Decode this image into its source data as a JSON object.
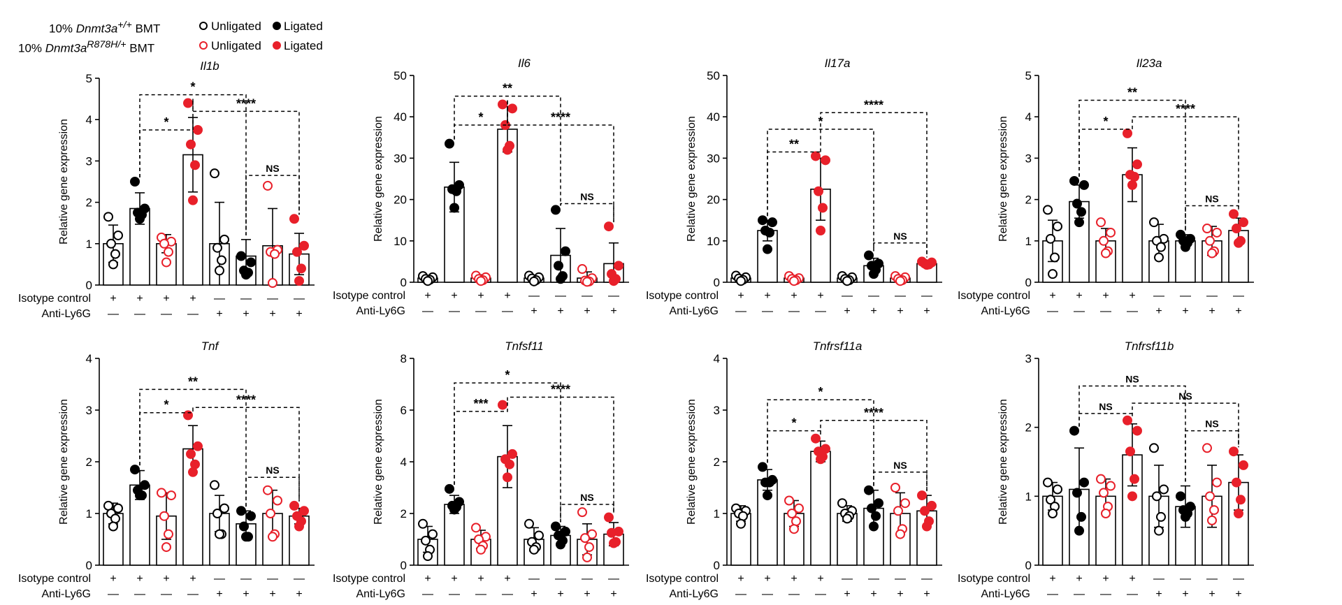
{
  "legend": {
    "rows": [
      {
        "prefix": "10% ",
        "gene": "Dnmt3a",
        "sup": "+/+",
        "suffix": " BMT",
        "color": "#000000",
        "unligated_label": "Unligated",
        "ligated_label": "Ligated"
      },
      {
        "prefix": "10% ",
        "gene": "Dnmt3a",
        "sup": "R878H/+",
        "suffix": " BMT",
        "color": "#e8202a",
        "unligated_label": "Unligated",
        "ligated_label": "Ligated"
      }
    ]
  },
  "treatment_rows": {
    "isotype_label": "Isotype control",
    "antily6g_label": "Anti-Ly6G",
    "isotype_signs": [
      "+",
      "+",
      "+",
      "+",
      "—",
      "—",
      "—",
      "—"
    ],
    "antily6g_signs": [
      "—",
      "—",
      "—",
      "—",
      "+",
      "+",
      "+",
      "+"
    ]
  },
  "colors": {
    "black": "#000000",
    "red": "#e8202a"
  },
  "chart_data": [
    {
      "type": "bar",
      "title": "Il1b",
      "ylabel": "Relative gene expression",
      "ylim": [
        0,
        5
      ],
      "yticks": [
        0,
        1,
        2,
        3,
        4,
        5
      ],
      "groups": [
        "Isotype control",
        "Isotype control",
        "Isotype control",
        "Isotype control",
        "Anti-Ly6G",
        "Anti-Ly6G",
        "Anti-Ly6G",
        "Anti-Ly6G"
      ],
      "series_colors": [
        "black",
        "black",
        "red",
        "red",
        "black",
        "black",
        "red",
        "red"
      ],
      "filled": [
        false,
        true,
        false,
        true,
        false,
        true,
        false,
        true
      ],
      "means": [
        1.0,
        1.85,
        1.0,
        3.15,
        1.0,
        0.7,
        0.95,
        0.75
      ],
      "errors": [
        0.45,
        0.38,
        0.22,
        0.9,
        1.0,
        0.4,
        0.9,
        0.5
      ],
      "points": [
        [
          1.65,
          1.2,
          1.0,
          0.75,
          0.5
        ],
        [
          2.5,
          1.85,
          1.75,
          1.7,
          1.6
        ],
        [
          1.15,
          1.05,
          1.0,
          0.8,
          0.55
        ],
        [
          4.4,
          3.75,
          3.4,
          2.9,
          2.05
        ],
        [
          2.7,
          1.1,
          0.9,
          0.6,
          0.35
        ],
        [
          0.7,
          0.55,
          0.35,
          0.3,
          0.25
        ],
        [
          2.4,
          0.85,
          0.8,
          0.75,
          0.05
        ],
        [
          1.6,
          0.95,
          0.8,
          0.4,
          0.1
        ]
      ],
      "comparisons": [
        {
          "from": 1,
          "to": 3,
          "y": 3.75,
          "label": "*"
        },
        {
          "from": 1,
          "to": 5,
          "y": 4.6,
          "label": "*"
        },
        {
          "from": 3,
          "to": 7,
          "y": 4.2,
          "label": "****"
        },
        {
          "from": 5,
          "to": 7,
          "y": 2.65,
          "label": "NS"
        }
      ]
    },
    {
      "type": "bar",
      "title": "Il6",
      "ylabel": "Relative gene expression",
      "ylim": [
        0,
        50
      ],
      "yticks": [
        0,
        10,
        20,
        30,
        40,
        50
      ],
      "groups": [
        "Isotype control",
        "Isotype control",
        "Isotype control",
        "Isotype control",
        "Anti-Ly6G",
        "Anti-Ly6G",
        "Anti-Ly6G",
        "Anti-Ly6G"
      ],
      "series_colors": [
        "black",
        "black",
        "red",
        "red",
        "black",
        "black",
        "red",
        "red"
      ],
      "filled": [
        false,
        true,
        false,
        true,
        false,
        true,
        false,
        true
      ],
      "means": [
        1.0,
        23.0,
        1.0,
        37.0,
        1.0,
        6.5,
        1.0,
        4.5
      ],
      "errors": [
        0.6,
        6.0,
        0.8,
        5.5,
        0.6,
        6.5,
        1.5,
        5.0
      ],
      "points": [
        [
          1.5,
          1.2,
          0.8,
          0.6,
          0.3
        ],
        [
          33.5,
          23.5,
          22.5,
          22.0,
          18.0
        ],
        [
          1.6,
          1.2,
          0.8,
          0.5,
          0.3
        ],
        [
          43.0,
          42.0,
          38.0,
          33.0,
          32.0
        ],
        [
          1.6,
          1.2,
          0.9,
          0.5,
          0.2
        ],
        [
          17.5,
          7.5,
          4.0,
          1.5,
          0.8
        ],
        [
          3.2,
          1.0,
          0.4,
          0.2,
          0.1
        ],
        [
          13.5,
          4.0,
          2.0,
          0.8,
          0.3
        ]
      ],
      "comparisons": [
        {
          "from": 1,
          "to": 3,
          "y": 38.0,
          "label": "*"
        },
        {
          "from": 1,
          "to": 5,
          "y": 45.0,
          "label": "**"
        },
        {
          "from": 3,
          "to": 7,
          "y": 38.0,
          "label": "****"
        },
        {
          "from": 5,
          "to": 7,
          "y": 19.0,
          "label": "NS"
        }
      ]
    },
    {
      "type": "bar",
      "title": "Il17a",
      "ylabel": "Relative gene expression",
      "ylim": [
        0,
        50
      ],
      "yticks": [
        0,
        10,
        20,
        30,
        40,
        50
      ],
      "groups": [
        "Isotype control",
        "Isotype control",
        "Isotype control",
        "Isotype control",
        "Anti-Ly6G",
        "Anti-Ly6G",
        "Anti-Ly6G",
        "Anti-Ly6G"
      ],
      "series_colors": [
        "black",
        "black",
        "red",
        "red",
        "black",
        "black",
        "red",
        "red"
      ],
      "filled": [
        false,
        true,
        false,
        true,
        false,
        true,
        false,
        true
      ],
      "means": [
        1.0,
        12.5,
        1.0,
        22.5,
        1.0,
        4.0,
        1.0,
        4.5
      ],
      "errors": [
        0.5,
        2.5,
        0.6,
        7.5,
        0.6,
        1.8,
        0.6,
        0.5
      ],
      "points": [
        [
          1.6,
          1.2,
          0.9,
          0.6,
          0.3
        ],
        [
          15.0,
          14.5,
          12.5,
          12.0,
          8.0
        ],
        [
          1.5,
          1.0,
          0.8,
          0.5,
          0.3
        ],
        [
          30.5,
          29.5,
          22.0,
          18.0,
          12.5
        ],
        [
          1.5,
          1.2,
          0.8,
          0.5,
          0.3
        ],
        [
          6.5,
          4.5,
          4.0,
          3.0,
          2.0
        ],
        [
          1.5,
          1.2,
          0.8,
          0.5,
          0.3
        ],
        [
          5.0,
          4.8,
          4.5,
          4.3,
          4.2
        ]
      ],
      "comparisons": [
        {
          "from": 1,
          "to": 3,
          "y": 31.5,
          "label": "**"
        },
        {
          "from": 1,
          "to": 5,
          "y": 37.0,
          "label": "*"
        },
        {
          "from": 3,
          "to": 7,
          "y": 41.0,
          "label": "****"
        },
        {
          "from": 5,
          "to": 7,
          "y": 9.5,
          "label": "NS"
        }
      ]
    },
    {
      "type": "bar",
      "title": "Il23a",
      "ylabel": "Relative gene expression",
      "ylim": [
        0,
        5
      ],
      "yticks": [
        0,
        1,
        2,
        3,
        4,
        5
      ],
      "groups": [
        "Isotype control",
        "Isotype control",
        "Isotype control",
        "Isotype control",
        "Anti-Ly6G",
        "Anti-Ly6G",
        "Anti-Ly6G",
        "Anti-Ly6G"
      ],
      "series_colors": [
        "black",
        "black",
        "red",
        "red",
        "black",
        "black",
        "red",
        "red"
      ],
      "filled": [
        false,
        true,
        false,
        true,
        false,
        true,
        false,
        true
      ],
      "means": [
        1.0,
        1.95,
        1.0,
        2.6,
        1.0,
        1.0,
        1.0,
        1.25
      ],
      "errors": [
        0.5,
        0.4,
        0.3,
        0.65,
        0.4,
        0.15,
        0.35,
        0.3
      ],
      "points": [
        [
          1.75,
          1.35,
          1.05,
          0.6,
          0.2
        ],
        [
          2.45,
          2.35,
          1.9,
          1.7,
          1.45
        ],
        [
          1.45,
          1.2,
          1.0,
          0.75,
          0.7
        ],
        [
          3.6,
          2.85,
          2.6,
          2.55,
          2.35
        ],
        [
          1.45,
          1.05,
          1.0,
          0.85,
          0.6
        ],
        [
          1.15,
          1.05,
          1.0,
          0.95,
          0.85
        ],
        [
          1.3,
          1.2,
          1.0,
          0.75,
          0.7
        ],
        [
          1.65,
          1.45,
          1.3,
          1.0,
          0.95
        ]
      ],
      "comparisons": [
        {
          "from": 1,
          "to": 3,
          "y": 3.7,
          "label": "*"
        },
        {
          "from": 1,
          "to": 5,
          "y": 4.4,
          "label": "**"
        },
        {
          "from": 3,
          "to": 7,
          "y": 4.0,
          "label": "****"
        },
        {
          "from": 5,
          "to": 7,
          "y": 1.85,
          "label": "NS"
        }
      ]
    },
    {
      "type": "bar",
      "title": "Tnf",
      "ylabel": "Relative gene expression",
      "ylim": [
        0,
        4
      ],
      "yticks": [
        0,
        1,
        2,
        3,
        4
      ],
      "groups": [
        "Isotype control",
        "Isotype control",
        "Isotype control",
        "Isotype control",
        "Anti-Ly6G",
        "Anti-Ly6G",
        "Anti-Ly6G",
        "Anti-Ly6G"
      ],
      "series_colors": [
        "black",
        "black",
        "red",
        "red",
        "black",
        "black",
        "red",
        "red"
      ],
      "filled": [
        false,
        true,
        false,
        true,
        false,
        true,
        false,
        true
      ],
      "means": [
        1.0,
        1.55,
        0.95,
        2.25,
        1.0,
        0.8,
        1.0,
        0.95
      ],
      "errors": [
        0.2,
        0.28,
        0.45,
        0.45,
        0.35,
        0.25,
        0.45,
        0.15
      ],
      "points": [
        [
          1.15,
          1.1,
          1.0,
          0.9,
          0.75
        ],
        [
          1.85,
          1.55,
          1.45,
          1.35,
          1.35
        ],
        [
          1.4,
          1.35,
          0.95,
          0.6,
          0.35
        ],
        [
          2.9,
          2.3,
          2.15,
          1.95,
          1.8
        ],
        [
          1.55,
          1.1,
          1.0,
          0.6,
          0.6
        ],
        [
          1.05,
          0.95,
          0.75,
          0.55,
          0.55
        ],
        [
          1.45,
          1.25,
          1.0,
          0.6,
          0.55
        ],
        [
          1.15,
          1.05,
          0.95,
          0.85,
          0.75
        ]
      ],
      "comparisons": [
        {
          "from": 1,
          "to": 3,
          "y": 2.95,
          "label": "*"
        },
        {
          "from": 1,
          "to": 5,
          "y": 3.4,
          "label": "**"
        },
        {
          "from": 3,
          "to": 7,
          "y": 3.05,
          "label": "****"
        },
        {
          "from": 5,
          "to": 7,
          "y": 1.7,
          "label": "NS"
        }
      ]
    },
    {
      "type": "bar",
      "title": "Tnfsf11",
      "ylabel": "Relative gene expression",
      "ylim": [
        0,
        8
      ],
      "yticks": [
        0,
        2,
        4,
        6,
        8
      ],
      "groups": [
        "Isotype control",
        "Isotype control",
        "Isotype control",
        "Isotype control",
        "Anti-Ly6G",
        "Anti-Ly6G",
        "Anti-Ly6G",
        "Anti-Ly6G"
      ],
      "series_colors": [
        "black",
        "black",
        "red",
        "red",
        "black",
        "black",
        "red",
        "red"
      ],
      "filled": [
        false,
        true,
        false,
        true,
        false,
        true,
        false,
        true
      ],
      "means": [
        1.0,
        2.35,
        1.0,
        4.2,
        1.0,
        1.15,
        1.0,
        1.2
      ],
      "errors": [
        0.5,
        0.35,
        0.35,
        1.2,
        0.45,
        0.35,
        0.6,
        0.45
      ],
      "points": [
        [
          1.6,
          1.2,
          0.95,
          0.6,
          0.35
        ],
        [
          2.95,
          2.45,
          2.3,
          2.25,
          2.15
        ],
        [
          1.45,
          1.1,
          1.0,
          0.75,
          0.6
        ],
        [
          6.2,
          4.3,
          4.1,
          3.9,
          3.4
        ],
        [
          1.6,
          1.15,
          0.9,
          0.7,
          0.6
        ],
        [
          1.5,
          1.3,
          1.15,
          0.95,
          0.8
        ],
        [
          2.05,
          1.2,
          1.05,
          0.7,
          0.3
        ],
        [
          1.85,
          1.3,
          1.25,
          0.9,
          0.85
        ]
      ],
      "comparisons": [
        {
          "from": 1,
          "to": 3,
          "y": 5.95,
          "label": "***"
        },
        {
          "from": 1,
          "to": 5,
          "y": 7.05,
          "label": "*"
        },
        {
          "from": 3,
          "to": 7,
          "y": 6.5,
          "label": "****"
        },
        {
          "from": 5,
          "to": 7,
          "y": 2.35,
          "label": "NS"
        }
      ]
    },
    {
      "type": "bar",
      "title": "Tnfrsf11a",
      "ylabel": "Relative gene expression",
      "ylim": [
        0,
        4
      ],
      "yticks": [
        0,
        1,
        2,
        3,
        4
      ],
      "groups": [
        "Isotype control",
        "Isotype control",
        "Isotype control",
        "Isotype control",
        "Anti-Ly6G",
        "Anti-Ly6G",
        "Anti-Ly6G",
        "Anti-Ly6G"
      ],
      "series_colors": [
        "black",
        "black",
        "red",
        "red",
        "black",
        "black",
        "red",
        "red"
      ],
      "filled": [
        false,
        true,
        false,
        true,
        false,
        true,
        false,
        true
      ],
      "means": [
        1.0,
        1.65,
        1.0,
        2.2,
        1.0,
        1.1,
        1.0,
        1.05
      ],
      "errors": [
        0.15,
        0.2,
        0.25,
        0.2,
        0.15,
        0.35,
        0.4,
        0.3
      ],
      "points": [
        [
          1.1,
          1.05,
          1.0,
          0.95,
          0.8
        ],
        [
          1.9,
          1.65,
          1.6,
          1.6,
          1.35
        ],
        [
          1.25,
          1.1,
          1.0,
          0.85,
          0.7
        ],
        [
          2.45,
          2.25,
          2.2,
          2.1,
          2.05
        ],
        [
          1.2,
          1.05,
          1.0,
          0.95,
          0.9
        ],
        [
          1.45,
          1.2,
          1.1,
          0.95,
          0.75
        ],
        [
          1.5,
          1.2,
          1.05,
          0.7,
          0.6
        ],
        [
          1.35,
          1.15,
          1.05,
          0.85,
          0.75
        ]
      ],
      "comparisons": [
        {
          "from": 1,
          "to": 3,
          "y": 2.6,
          "label": "*"
        },
        {
          "from": 1,
          "to": 5,
          "y": 3.2,
          "label": "*"
        },
        {
          "from": 3,
          "to": 7,
          "y": 2.8,
          "label": "****"
        },
        {
          "from": 5,
          "to": 7,
          "y": 1.8,
          "label": "NS"
        }
      ]
    },
    {
      "type": "bar",
      "title": "Tnfrsf11b",
      "ylabel": "Relative gene expression",
      "ylim": [
        0,
        3
      ],
      "yticks": [
        0,
        1,
        2,
        3
      ],
      "groups": [
        "Isotype control",
        "Isotype control",
        "Isotype control",
        "Isotype control",
        "Anti-Ly6G",
        "Anti-Ly6G",
        "Anti-Ly6G",
        "Anti-Ly6G"
      ],
      "series_colors": [
        "black",
        "black",
        "red",
        "red",
        "black",
        "black",
        "red",
        "red"
      ],
      "filled": [
        false,
        true,
        false,
        true,
        false,
        true,
        false,
        true
      ],
      "means": [
        1.0,
        1.1,
        1.0,
        1.6,
        1.0,
        0.85,
        1.0,
        1.2
      ],
      "errors": [
        0.2,
        0.6,
        0.25,
        0.45,
        0.45,
        0.3,
        0.45,
        0.4
      ],
      "points": [
        [
          1.2,
          1.1,
          0.95,
          0.85,
          0.75
        ],
        [
          1.95,
          1.2,
          1.05,
          0.7,
          0.5
        ],
        [
          1.25,
          1.15,
          1.05,
          0.85,
          0.75
        ],
        [
          2.1,
          1.95,
          1.65,
          1.25,
          1.0
        ],
        [
          1.7,
          1.1,
          1.0,
          0.7,
          0.5
        ],
        [
          1.0,
          0.85,
          0.8,
          0.75,
          0.7
        ],
        [
          1.7,
          1.2,
          1.0,
          0.8,
          0.65
        ],
        [
          1.65,
          1.45,
          1.2,
          0.95,
          0.75
        ]
      ],
      "comparisons": [
        {
          "from": 1,
          "to": 5,
          "y": 2.6,
          "label": "NS"
        },
        {
          "from": 1,
          "to": 3,
          "y": 2.2,
          "label": "NS"
        },
        {
          "from": 3,
          "to": 7,
          "y": 2.35,
          "label": "NS"
        },
        {
          "from": 5,
          "to": 7,
          "y": 1.95,
          "label": "NS"
        }
      ]
    }
  ]
}
